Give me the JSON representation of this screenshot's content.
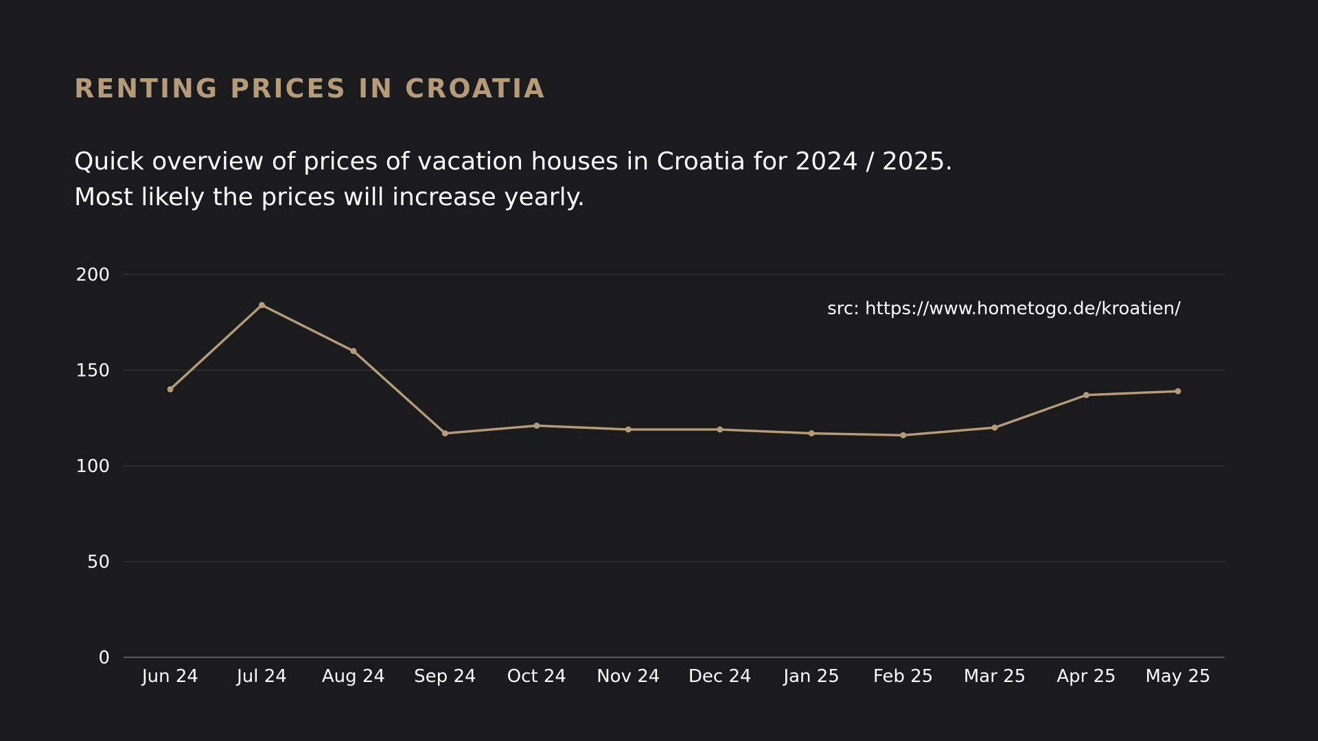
{
  "title": "RENTING PRICES IN CROATIA",
  "subtitle_lines": [
    "Quick overview of prices of vacation houses in Croatia for 2024 / 2025.",
    "Most likely the prices will increase yearly."
  ],
  "colors": {
    "background": "#1b1a1c",
    "accent": "#b59b7a",
    "text": "#ffffff",
    "grid": "#3b3a3d"
  },
  "chart_data": {
    "type": "line",
    "categories": [
      "Jun 24",
      "Jul 24",
      "Aug 24",
      "Sep 24",
      "Oct 24",
      "Nov 24",
      "Dec 24",
      "Jan 25",
      "Feb 25",
      "Mar 25",
      "Apr 25",
      "May 25"
    ],
    "series": [
      {
        "values": [
          140,
          184,
          160,
          117,
          121,
          119,
          119,
          117,
          116,
          120,
          137,
          139
        ]
      }
    ],
    "ylim": [
      0,
      200
    ],
    "yticks": [
      0,
      50,
      100,
      150,
      200
    ],
    "grid": true,
    "annotation": "src: https://www.hometogo.de/kroatien/"
  }
}
